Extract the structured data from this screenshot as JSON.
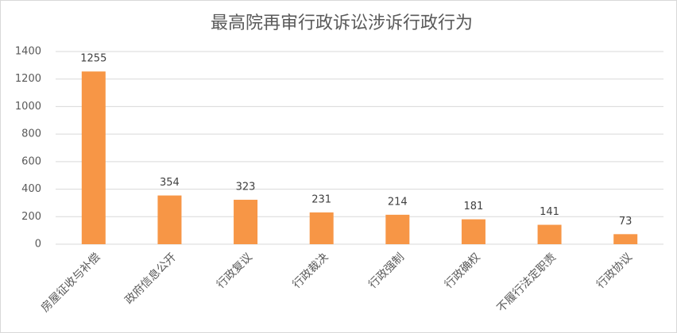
{
  "chart_data": {
    "type": "bar",
    "title": "最高院再审行政诉讼涉诉行政行为",
    "categories": [
      "房屋征收与补偿",
      "政府信息公开",
      "行政复议",
      "行政裁决",
      "行政强制",
      "行政确权",
      "不履行法定职责",
      "行政协议"
    ],
    "values": [
      1255,
      354,
      323,
      231,
      214,
      181,
      141,
      73
    ],
    "color": "#f79646",
    "ylim": [
      0,
      1400
    ],
    "yticks": [
      0,
      200,
      400,
      600,
      800,
      1000,
      1200,
      1400
    ],
    "grid": true
  }
}
